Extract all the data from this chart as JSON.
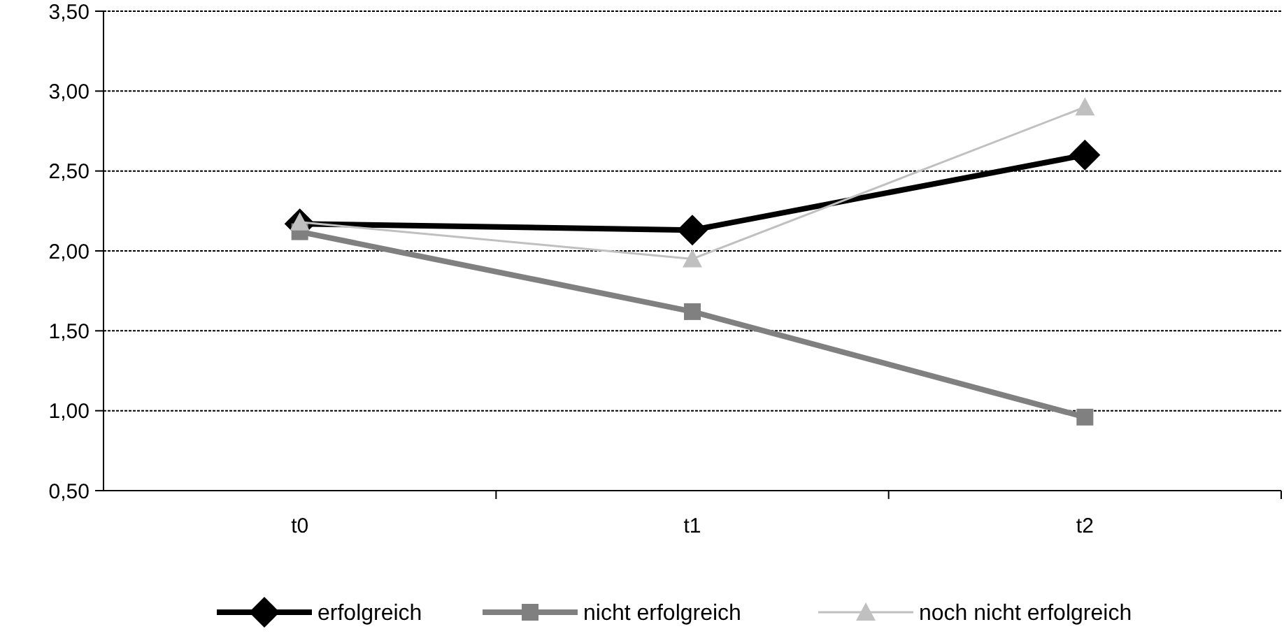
{
  "chart_data": {
    "type": "line",
    "categories": [
      "t0",
      "t1",
      "t2"
    ],
    "series": [
      {
        "name": "erfolgreich",
        "color": "#000000",
        "values": [
          2.17,
          2.13,
          2.6
        ],
        "marker": "diamond"
      },
      {
        "name": "nicht erfolgreich",
        "color": "#808080",
        "values": [
          2.12,
          1.62,
          0.96
        ],
        "marker": "square"
      },
      {
        "name": "noch nicht erfolgreich",
        "color": "#c0c0c0",
        "values": [
          2.18,
          1.95,
          2.9
        ],
        "marker": "triangle"
      }
    ],
    "ylim": [
      0.5,
      3.5
    ],
    "yticks": [
      {
        "value": 0.5,
        "label": "0,50"
      },
      {
        "value": 1,
        "label": "1,00"
      },
      {
        "value": 1.5,
        "label": "1,50"
      },
      {
        "value": 2,
        "label": "2,00"
      },
      {
        "value": 2.5,
        "label": "2,50"
      },
      {
        "value": 3,
        "label": "3,00"
      },
      {
        "value": 3.5,
        "label": "3,50"
      }
    ],
    "grid": "y",
    "legend": "bottom"
  }
}
